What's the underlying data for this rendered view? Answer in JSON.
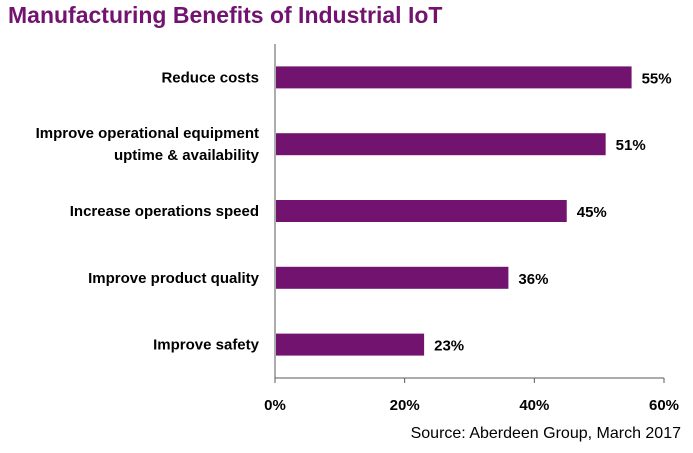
{
  "chart_data": {
    "type": "bar",
    "orientation": "horizontal",
    "title": "Manufacturing Benefits of Industrial IoT",
    "categories": [
      [
        "Reduce costs"
      ],
      [
        "Improve operational equipment",
        "uptime & availability"
      ],
      [
        "Increase operations speed"
      ],
      [
        "Improve product quality"
      ],
      [
        "Improve safety"
      ]
    ],
    "values": [
      55,
      51,
      45,
      36,
      23
    ],
    "data_labels": [
      "55%",
      "51%",
      "45%",
      "36%",
      "23%"
    ],
    "xlim": [
      0,
      60
    ],
    "xticks": [
      0,
      20,
      40,
      60
    ],
    "xtick_labels": [
      "0%",
      "20%",
      "40%",
      "60%"
    ],
    "xlabel": "",
    "ylabel": "",
    "grid": false,
    "bar_color": "#72146f",
    "source": "Source: Aberdeen Group, March 2017"
  }
}
